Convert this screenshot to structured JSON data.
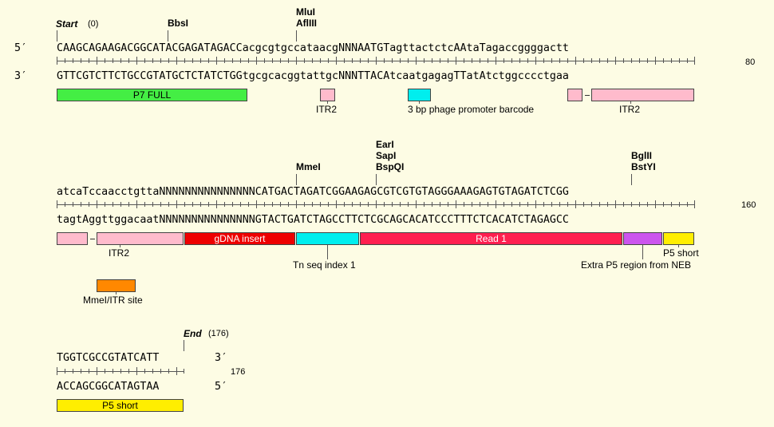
{
  "row1": {
    "start_label": "Start",
    "start_pos": "(0)",
    "top_strand_label": "5′",
    "bottom_strand_label": "3′",
    "top_seq": "CAAGCAGAAGACGGCATACGAGATAGACCacgcgtgccataacgNNNAATGTagttactctcAAtaTagaccggggactt",
    "bottom_seq": "GTTCGTCTTCTGCCGTATGCTCTATCTGGtgcgcacggtattgcNNNTTACAtcaatgagagTTatAtctggcccctgaa",
    "end_number": "80",
    "enzymes": {
      "bbsi": "BbsI",
      "mlui": "MluI",
      "afliii": "AflIII"
    },
    "features": {
      "p7_full": "P7 FULL",
      "itr2_small": "ITR2",
      "barcode": "3 bp phage promoter barcode",
      "itr2_large": "ITR2"
    }
  },
  "row2": {
    "top_seq": "atcaTccaacctgttaNNNNNNNNNNNNNNNCATGACTAGATCGGAAGAGCGTCGTGTAGGGAAAGAGTGTAGATCTCGG",
    "bottom_seq": "tagtAggttggacaatNNNNNNNNNNNNNNNGTACTGATCTAGCCTTCTCGCAGCACATCCCTTTCTCACATCTAGAGCC",
    "end_number": "160",
    "enzymes": {
      "mmei": "MmeI",
      "eari": "EarI",
      "sapi": "SapI",
      "bspqi": "BspQI",
      "bglii": "BglII",
      "bstyi": "BstYI"
    },
    "features": {
      "itr2": "ITR2",
      "gdna": "gDNA insert",
      "tnseq": "Tn seq index 1",
      "read1": "Read 1",
      "extra_p5": "Extra P5 region from NEB",
      "p5_short": "P5 short",
      "mmei_itr": "MmeI/ITR site"
    }
  },
  "row3": {
    "end_label": "End",
    "end_pos": "(176)",
    "top_seq": "TGGTCGCCGTATCATT",
    "bottom_seq": "ACCAGCGGCATAGTAA",
    "top_strand_label": "3′",
    "bottom_strand_label": "5′",
    "end_number": "176",
    "features": {
      "p5_short": "P5 short"
    }
  },
  "colors": {
    "background": "#fdfce4",
    "p7_full": "#44ee44",
    "itr2": "#ffbbcc",
    "barcode": "#00eeee",
    "gdna": "#ee0000",
    "tnseq": "#00eeee",
    "read1": "#ff1f4f",
    "extra_p5": "#cc55ee",
    "p5_short": "#ffee00",
    "mmei_itr": "#ff8800"
  }
}
